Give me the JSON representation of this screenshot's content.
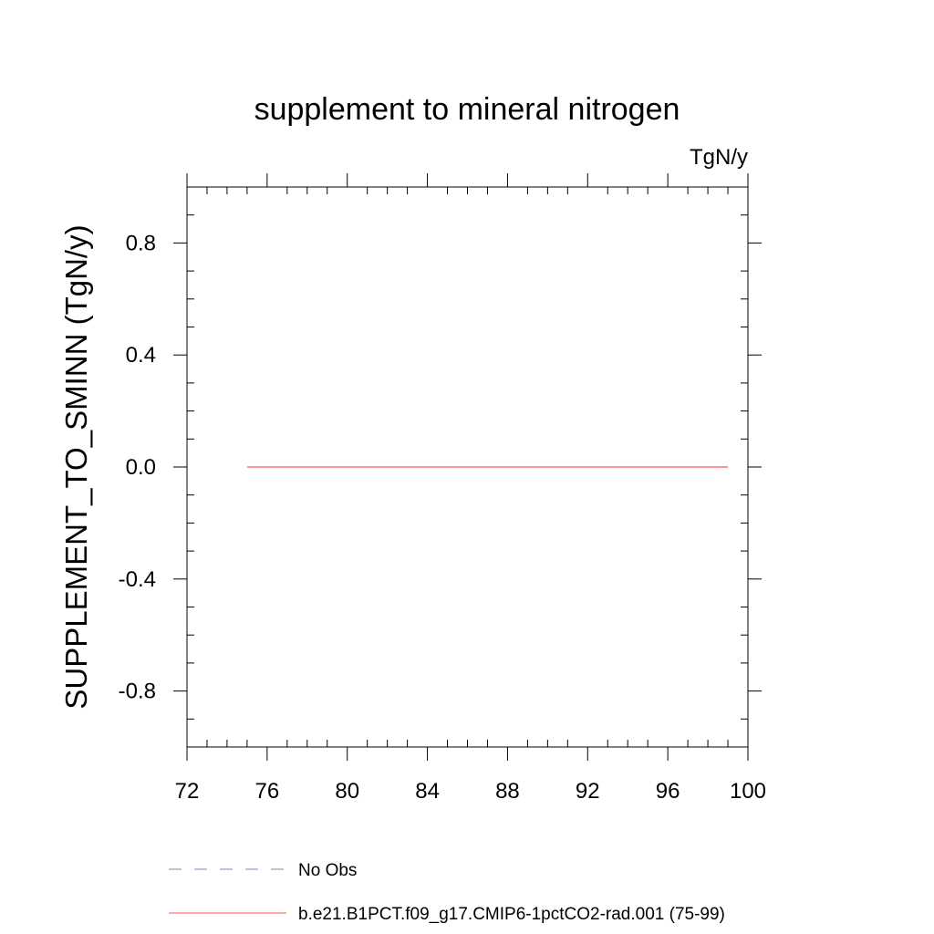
{
  "chart_data": {
    "type": "line",
    "title": "supplement to mineral nitrogen",
    "units": "TgN/y",
    "xlabel": "",
    "ylabel": "SUPPLEMENT_TO_SMINN  (TgN/y)",
    "xlim": [
      72,
      100
    ],
    "ylim": [
      -1.0,
      1.0
    ],
    "x_ticks": [
      72,
      76,
      80,
      84,
      88,
      92,
      96,
      100
    ],
    "x_tick_labels": [
      "72",
      "76",
      "80",
      "84",
      "88",
      "92",
      "96",
      "100"
    ],
    "y_ticks": [
      -0.8,
      -0.4,
      0.0,
      0.4,
      0.8
    ],
    "y_tick_labels": [
      "-0.8",
      "-0.4",
      "0.0",
      "0.4",
      "0.8"
    ],
    "grid": false,
    "legend_position": "bottom",
    "series": [
      {
        "name": "No Obs",
        "color": "#8080c0",
        "dash": "dashed",
        "x": [],
        "y": []
      },
      {
        "name": "b.e21.B1PCT.f09_g17.CMIP6-1pctCO2-rad.001 (75-99)",
        "color": "#ff5050",
        "dash": "solid",
        "x": [
          75,
          76,
          77,
          78,
          79,
          80,
          81,
          82,
          83,
          84,
          85,
          86,
          87,
          88,
          89,
          90,
          91,
          92,
          93,
          94,
          95,
          96,
          97,
          98,
          99
        ],
        "y": [
          0,
          0,
          0,
          0,
          0,
          0,
          0,
          0,
          0,
          0,
          0,
          0,
          0,
          0,
          0,
          0,
          0,
          0,
          0,
          0,
          0,
          0,
          0,
          0,
          0
        ]
      }
    ]
  }
}
